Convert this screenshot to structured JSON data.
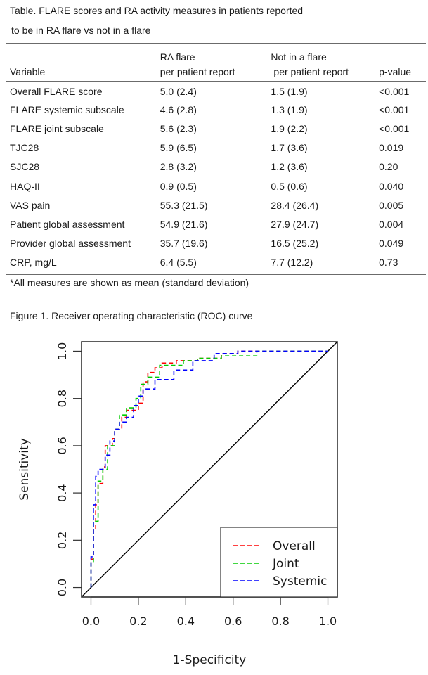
{
  "table": {
    "caption_line1": "Table. FLARE scores and RA activity measures in patients reported",
    "caption_line2": "to be in RA flare vs not in a flare",
    "headers_row1": [
      "",
      "RA flare",
      "Not in a flare",
      ""
    ],
    "headers_row2": [
      "Variable",
      "per patient report",
      "per patient report",
      "p-value"
    ],
    "rows": [
      [
        "Overall FLARE score",
        "5.0 (2.4)",
        "1.5 (1.9)",
        "<0.001"
      ],
      [
        "FLARE systemic subscale",
        "4.6 (2.8)",
        "1.3 (1.9)",
        "<0.001"
      ],
      [
        "FLARE joint subscale",
        "5.6 (2.3)",
        "1.9 (2.2)",
        "<0.001"
      ],
      [
        "TJC28",
        "5.9 (6.5)",
        "1.7 (3.6)",
        "0.019"
      ],
      [
        "SJC28",
        "2.8 (3.2)",
        "1.2 (3.6)",
        "0.20"
      ],
      [
        "HAQ-II",
        "0.9 (0.5)",
        "0.5 (0.6)",
        "0.040"
      ],
      [
        "VAS pain",
        "55.3 (21.5)",
        "28.4 (26.4)",
        "0.005"
      ],
      [
        "Patient global assessment",
        "54.9 (21.6)",
        "27.9 (24.7)",
        "0.004"
      ],
      [
        "Provider global assessment",
        "35.7 (19.6)",
        "16.5 (25.2)",
        "0.049"
      ],
      [
        "CRP, mg/L",
        "6.4 (5.5)",
        "7.7 (12.2)",
        "0.73"
      ]
    ],
    "footnote": "*All measures are shown as mean (standard deviation)"
  },
  "figure": {
    "caption": "Figure 1. Receiver operating characteristic (ROC) curve"
  },
  "chart_data": {
    "type": "line",
    "title": "",
    "xlabel": "1-Specificity",
    "ylabel": "Sensitivity",
    "xlim": [
      0,
      1
    ],
    "ylim": [
      0,
      1
    ],
    "xticks": [
      "0.0",
      "0.2",
      "0.4",
      "0.6",
      "0.8",
      "1.0"
    ],
    "yticks": [
      "0.0",
      "0.2",
      "0.4",
      "0.6",
      "0.8",
      "1.0"
    ],
    "grid": false,
    "legend_position": "bottom-right",
    "reference_line": {
      "x": [
        0,
        1
      ],
      "y": [
        0,
        1
      ],
      "color": "#000000",
      "style": "solid"
    },
    "series": [
      {
        "name": "Overall",
        "color": "#ff0000",
        "style": "dashed",
        "x": [
          0.0,
          0.0,
          0.01,
          0.01,
          0.02,
          0.02,
          0.03,
          0.03,
          0.05,
          0.05,
          0.06,
          0.06,
          0.09,
          0.09,
          0.1,
          0.1,
          0.13,
          0.13,
          0.15,
          0.15,
          0.2,
          0.2,
          0.22,
          0.22,
          0.24,
          0.24,
          0.27,
          0.27,
          0.3,
          0.3,
          0.36,
          0.36,
          0.45,
          0.45,
          0.55,
          0.55,
          0.62,
          0.62,
          1.0
        ],
        "y": [
          0.0,
          0.12,
          0.12,
          0.25,
          0.25,
          0.35,
          0.35,
          0.44,
          0.44,
          0.51,
          0.51,
          0.6,
          0.6,
          0.63,
          0.63,
          0.67,
          0.67,
          0.72,
          0.72,
          0.75,
          0.75,
          0.78,
          0.78,
          0.87,
          0.87,
          0.91,
          0.91,
          0.93,
          0.93,
          0.95,
          0.95,
          0.96,
          0.96,
          0.97,
          0.97,
          0.99,
          0.99,
          1.0,
          1.0
        ]
      },
      {
        "name": "Joint",
        "color": "#00cc00",
        "style": "dashed",
        "x": [
          0.0,
          0.0,
          0.01,
          0.01,
          0.03,
          0.03,
          0.05,
          0.05,
          0.07,
          0.07,
          0.1,
          0.1,
          0.12,
          0.12,
          0.15,
          0.15,
          0.19,
          0.19,
          0.21,
          0.21,
          0.24,
          0.24,
          0.29,
          0.29,
          0.39,
          0.39,
          0.45,
          0.45,
          0.55,
          0.55,
          0.7,
          0.7,
          1.0
        ],
        "y": [
          0.0,
          0.11,
          0.11,
          0.28,
          0.28,
          0.45,
          0.45,
          0.5,
          0.5,
          0.6,
          0.6,
          0.67,
          0.67,
          0.73,
          0.73,
          0.76,
          0.76,
          0.8,
          0.8,
          0.86,
          0.86,
          0.89,
          0.89,
          0.94,
          0.94,
          0.96,
          0.96,
          0.97,
          0.97,
          0.98,
          0.98,
          1.0,
          1.0
        ]
      },
      {
        "name": "Systemic",
        "color": "#0000ff",
        "style": "dashed",
        "x": [
          0.0,
          0.0,
          0.01,
          0.01,
          0.02,
          0.02,
          0.03,
          0.03,
          0.06,
          0.06,
          0.08,
          0.08,
          0.1,
          0.1,
          0.12,
          0.12,
          0.15,
          0.15,
          0.18,
          0.18,
          0.2,
          0.2,
          0.22,
          0.22,
          0.27,
          0.27,
          0.35,
          0.35,
          0.43,
          0.43,
          0.52,
          0.52,
          0.62,
          0.62,
          1.0
        ],
        "y": [
          0.0,
          0.13,
          0.13,
          0.35,
          0.35,
          0.47,
          0.47,
          0.5,
          0.5,
          0.56,
          0.56,
          0.62,
          0.62,
          0.67,
          0.67,
          0.7,
          0.7,
          0.72,
          0.72,
          0.77,
          0.77,
          0.81,
          0.81,
          0.84,
          0.84,
          0.88,
          0.88,
          0.92,
          0.92,
          0.96,
          0.96,
          0.99,
          0.99,
          1.0,
          1.0
        ]
      }
    ]
  }
}
